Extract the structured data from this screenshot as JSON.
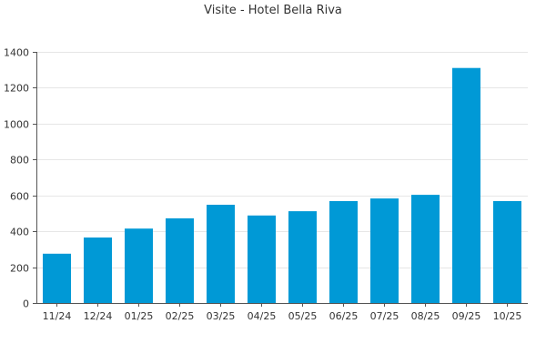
{
  "chart_data": {
    "type": "bar",
    "title": "Visite - Hotel Bella Riva",
    "xlabel": "",
    "ylabel": "",
    "categories": [
      "11/24",
      "12/24",
      "01/25",
      "02/25",
      "03/25",
      "04/25",
      "05/25",
      "06/25",
      "07/25",
      "08/25",
      "09/25",
      "10/25"
    ],
    "values": [
      275,
      365,
      415,
      472,
      548,
      488,
      512,
      568,
      583,
      603,
      1310,
      568
    ],
    "ylim": [
      0,
      1400
    ],
    "yticks": [
      0,
      200,
      400,
      600,
      800,
      1000,
      1200,
      1400
    ],
    "grid": true,
    "bar_color": "#0099d6",
    "legend": "none"
  }
}
